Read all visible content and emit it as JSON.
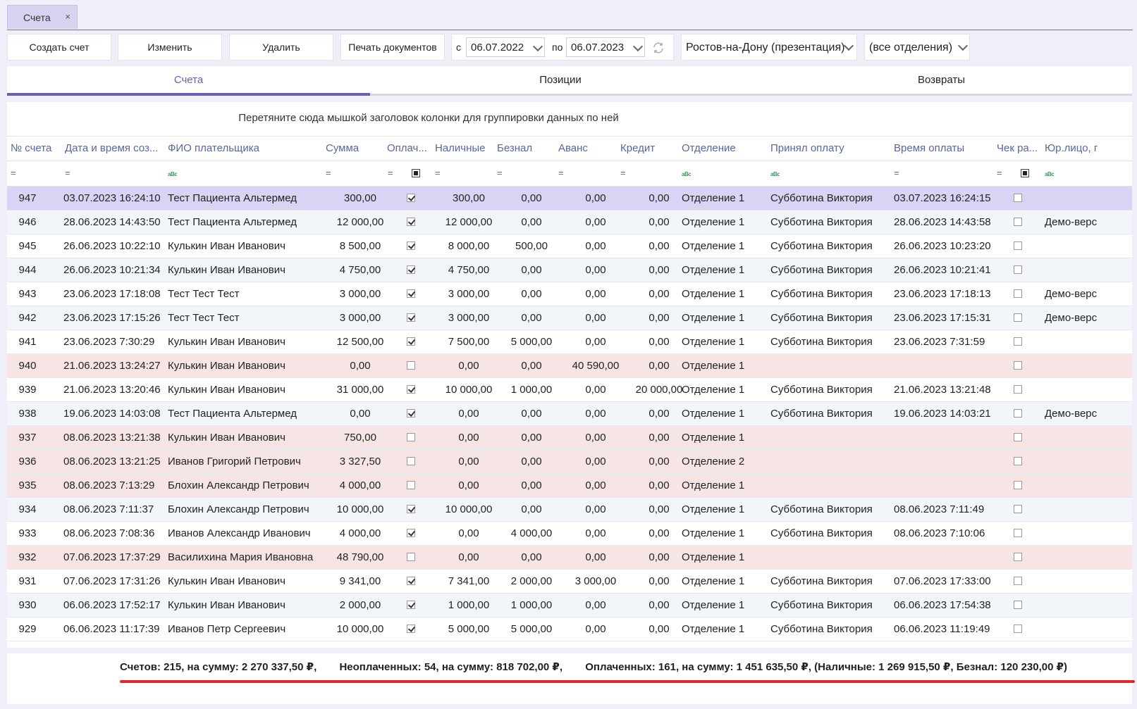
{
  "doc_tab": {
    "title": "Счета",
    "close": "×"
  },
  "toolbar": {
    "create": "Создать счет",
    "edit": "Изменить",
    "delete": "Удалить",
    "print": "Печать документов",
    "from_label": "с",
    "from_date": "06.07.2022",
    "to_label": "по",
    "to_date": "06.07.2023",
    "city": "Ростов-на-Дону (презентация)",
    "department": "(все отделения)"
  },
  "tabs": [
    "Счета",
    "Позиции",
    "Возвраты"
  ],
  "grid": {
    "group_hint": "Перетяните сюда мышкой заголовок колонки для группировки данных по ней",
    "columns": [
      "№ счета",
      "Дата и время соз...",
      "ФИО плательщика",
      "Сумма",
      "Оплач...",
      "Наличные",
      "Безнал",
      "Аванс",
      "Кредит",
      "Отделение",
      "Принял оплату",
      "Время оплаты",
      "Чек ра...",
      "Юр.лицо, г"
    ],
    "filter_eq": "=",
    "filter_abc": "a͏Bc",
    "rows": [
      {
        "num": "947",
        "created": "03.07.2023 16:24:10",
        "payer": "Тест Пациента Альтермед",
        "sum": "300,00",
        "paid": true,
        "cash": "300,00",
        "card": "0,00",
        "advance": "0,00",
        "credit": "0,00",
        "dept": "Отделение 1",
        "cashier": "Субботина Виктория",
        "paid_at": "03.07.2023 16:24:15",
        "legal": "",
        "state": "selected"
      },
      {
        "num": "946",
        "created": "28.06.2023 14:43:50",
        "payer": "Тест Пациента Альтермед",
        "sum": "12 000,00",
        "paid": true,
        "cash": "12 000,00",
        "card": "0,00",
        "advance": "0,00",
        "credit": "0,00",
        "dept": "Отделение 1",
        "cashier": "Субботина Виктория",
        "paid_at": "28.06.2023 14:43:58",
        "legal": "Демо-верс",
        "state": "even"
      },
      {
        "num": "945",
        "created": "26.06.2023 10:22:10",
        "payer": "Кулькин Иван Иванович",
        "sum": "8 500,00",
        "paid": true,
        "cash": "8 000,00",
        "card": "500,00",
        "advance": "0,00",
        "credit": "0,00",
        "dept": "Отделение 1",
        "cashier": "Субботина Виктория",
        "paid_at": "26.06.2023 10:23:20",
        "legal": "",
        "state": "odd"
      },
      {
        "num": "944",
        "created": "26.06.2023 10:21:34",
        "payer": "Кулькин Иван Иванович",
        "sum": "4 750,00",
        "paid": true,
        "cash": "4 750,00",
        "card": "0,00",
        "advance": "0,00",
        "credit": "0,00",
        "dept": "Отделение 1",
        "cashier": "Субботина Виктория",
        "paid_at": "26.06.2023 10:21:41",
        "legal": "",
        "state": "even"
      },
      {
        "num": "943",
        "created": "23.06.2023 17:18:08",
        "payer": "Тест Тест Тест",
        "sum": "3 000,00",
        "paid": true,
        "cash": "3 000,00",
        "card": "0,00",
        "advance": "0,00",
        "credit": "0,00",
        "dept": "Отделение 1",
        "cashier": "Субботина Виктория",
        "paid_at": "23.06.2023 17:18:13",
        "legal": "Демо-верс",
        "state": "odd"
      },
      {
        "num": "942",
        "created": "23.06.2023 17:15:26",
        "payer": "Тест Тест Тест",
        "sum": "3 000,00",
        "paid": true,
        "cash": "3 000,00",
        "card": "0,00",
        "advance": "0,00",
        "credit": "0,00",
        "dept": "Отделение 1",
        "cashier": "Субботина Виктория",
        "paid_at": "23.06.2023 17:15:31",
        "legal": "Демо-верс",
        "state": "even"
      },
      {
        "num": "941",
        "created": "23.06.2023 7:30:29",
        "payer": "Кулькин Иван Иванович",
        "sum": "12 500,00",
        "paid": true,
        "cash": "7 500,00",
        "card": "5 000,00",
        "advance": "0,00",
        "credit": "0,00",
        "dept": "Отделение 1",
        "cashier": "Субботина Виктория",
        "paid_at": "23.06.2023 7:31:59",
        "legal": "",
        "state": "odd"
      },
      {
        "num": "940",
        "created": "21.06.2023 13:24:27",
        "payer": "Кулькин Иван Иванович",
        "sum": "0,00",
        "paid": false,
        "cash": "0,00",
        "card": "0,00",
        "advance": "40 590,00",
        "credit": "0,00",
        "dept": "Отделение 1",
        "cashier": "",
        "paid_at": "",
        "legal": "",
        "state": "unpaid"
      },
      {
        "num": "939",
        "created": "21.06.2023 13:20:46",
        "payer": "Кулькин Иван Иванович",
        "sum": "31 000,00",
        "paid": true,
        "cash": "10 000,00",
        "card": "1 000,00",
        "advance": "0,00",
        "credit": "20 000,00",
        "dept": "Отделение 1",
        "cashier": "Субботина Виктория",
        "paid_at": "21.06.2023 13:21:48",
        "legal": "",
        "state": "odd"
      },
      {
        "num": "938",
        "created": "19.06.2023 14:03:08",
        "payer": "Тест Пациента Альтермед",
        "sum": "0,00",
        "paid": true,
        "cash": "0,00",
        "card": "0,00",
        "advance": "0,00",
        "credit": "0,00",
        "dept": "Отделение 1",
        "cashier": "Субботина Виктория",
        "paid_at": "19.06.2023 14:03:21",
        "legal": "Демо-верс",
        "state": "even"
      },
      {
        "num": "937",
        "created": "08.06.2023 13:21:38",
        "payer": "Кулькин Иван Иванович",
        "sum": "750,00",
        "paid": false,
        "cash": "0,00",
        "card": "0,00",
        "advance": "0,00",
        "credit": "0,00",
        "dept": "Отделение 1",
        "cashier": "",
        "paid_at": "",
        "legal": "",
        "state": "unpaid"
      },
      {
        "num": "936",
        "created": "08.06.2023 13:21:25",
        "payer": "Иванов Григорий Петрович",
        "sum": "3 327,50",
        "paid": false,
        "cash": "0,00",
        "card": "0,00",
        "advance": "0,00",
        "credit": "0,00",
        "dept": "Отделение 2",
        "cashier": "",
        "paid_at": "",
        "legal": "",
        "state": "unpaid"
      },
      {
        "num": "935",
        "created": "08.06.2023 7:13:29",
        "payer": "Блохин Александр Петрович",
        "sum": "4 000,00",
        "paid": false,
        "cash": "0,00",
        "card": "0,00",
        "advance": "0,00",
        "credit": "0,00",
        "dept": "Отделение 1",
        "cashier": "",
        "paid_at": "",
        "legal": "",
        "state": "unpaid"
      },
      {
        "num": "934",
        "created": "08.06.2023 7:11:37",
        "payer": "Блохин Александр Петрович",
        "sum": "10 000,00",
        "paid": true,
        "cash": "10 000,00",
        "card": "0,00",
        "advance": "0,00",
        "credit": "0,00",
        "dept": "Отделение 1",
        "cashier": "Субботина Виктория",
        "paid_at": "08.06.2023 7:11:49",
        "legal": "",
        "state": "even"
      },
      {
        "num": "933",
        "created": "08.06.2023 7:08:36",
        "payer": "Иванов Александр Иванович",
        "sum": "4 000,00",
        "paid": true,
        "cash": "0,00",
        "card": "4 000,00",
        "advance": "0,00",
        "credit": "0,00",
        "dept": "Отделение 1",
        "cashier": "Субботина Виктория",
        "paid_at": "08.06.2023 7:10:06",
        "legal": "",
        "state": "odd"
      },
      {
        "num": "932",
        "created": "07.06.2023 17:37:29",
        "payer": "Василихина Мария Ивановна",
        "sum": "48 790,00",
        "paid": false,
        "cash": "0,00",
        "card": "0,00",
        "advance": "0,00",
        "credit": "0,00",
        "dept": "Отделение 1",
        "cashier": "",
        "paid_at": "",
        "legal": "",
        "state": "unpaid"
      },
      {
        "num": "931",
        "created": "07.06.2023 17:31:26",
        "payer": "Кулькин Иван Иванович",
        "sum": "9 341,00",
        "paid": true,
        "cash": "7 341,00",
        "card": "2 000,00",
        "advance": "3 000,00",
        "credit": "0,00",
        "dept": "Отделение 1",
        "cashier": "Субботина Виктория",
        "paid_at": "07.06.2023 17:33:00",
        "legal": "",
        "state": "odd"
      },
      {
        "num": "930",
        "created": "06.06.2023 17:52:17",
        "payer": "Кулькин Иван Иванович",
        "sum": "2 000,00",
        "paid": true,
        "cash": "1 000,00",
        "card": "1 000,00",
        "advance": "0,00",
        "credit": "0,00",
        "dept": "Отделение 1",
        "cashier": "Субботина Виктория",
        "paid_at": "06.06.2023 17:54:38",
        "legal": "",
        "state": "even"
      },
      {
        "num": "929",
        "created": "06.06.2023 11:17:39",
        "payer": "Иванов Петр Сергеевич",
        "sum": "10 000,00",
        "paid": true,
        "cash": "5 000,00",
        "card": "5 000,00",
        "advance": "0,00",
        "credit": "0,00",
        "dept": "Отделение 1",
        "cashier": "Субботина Виктория",
        "paid_at": "06.06.2023 11:19:49",
        "legal": "",
        "state": "odd"
      }
    ]
  },
  "summary": {
    "total": "Счетов: 215, на сумму: 2 270 337,50 ₽,",
    "unpaid": "Неоплаченных: 54, на сумму: 818 702,00 ₽,",
    "paid": "Оплаченных: 161, на сумму: 1 451 635,50 ₽, (Наличные: 1 269 915,50 ₽, Безнал: 120 230,00 ₽)"
  }
}
